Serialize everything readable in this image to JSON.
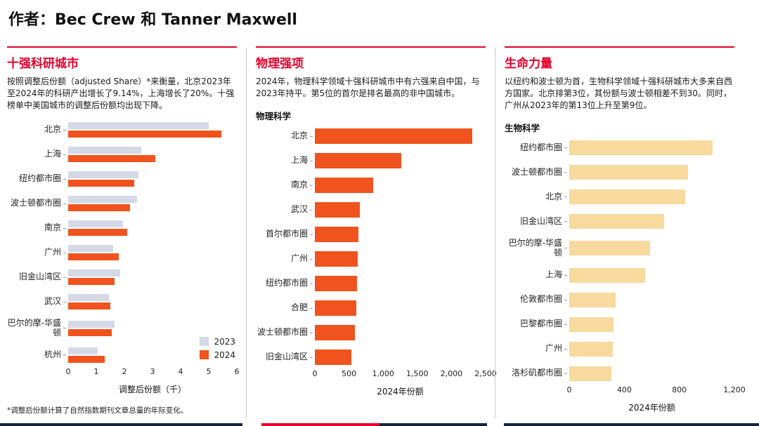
{
  "header": {
    "title": "作者：Bec Crew 和 Tanner Maxwell"
  },
  "colors": {
    "accent_red": "#e4002b",
    "bar_2023": "#d5d8e6",
    "bar_2024": "#f0531d",
    "bar_bio": "#f8d99e",
    "footer_navy": "#16243d"
  },
  "sections": [
    {
      "title": "十强科研城市",
      "body": "按照调整后份额（adjusted Share）*来衡量，北京2023年至2024年的科研产出增长了9.14%，上海增长了20%。十强榜单中美国城市的调整后份额均出现下降。",
      "footnote": "*调整后份额计算了自然指数期刊文章总量的年际变化。"
    },
    {
      "title": "物理强项",
      "body": "2024年，物理科学领域十强科研城市中有六强来自中国，与2023年持平。第5位的首尔是排名最高的非中国城市。",
      "chart_subtitle": "物理科学"
    },
    {
      "title": "生命力量",
      "body": "以纽约和波士顿为首，生物科学领域十强科研城市大多来自西方国家。北京排第3位，其份额与波士顿相差不到30。同时，广州从2023年的第13位上升至第9位。",
      "chart_subtitle": "生物科学"
    }
  ],
  "chart_data": [
    {
      "type": "bar",
      "orientation": "horizontal",
      "title": "十强科研城市",
      "categories": [
        "北京",
        "上海",
        "纽约都市圈",
        "波士顿都市圈",
        "南京",
        "广州",
        "旧金山湾区",
        "武汉",
        "巴尔的摩-华盛顿",
        "杭州"
      ],
      "series": [
        {
          "name": "2023",
          "color": "#d5d8e6",
          "values": [
            5.0,
            2.6,
            2.5,
            2.45,
            1.95,
            1.6,
            1.85,
            1.45,
            1.65,
            1.05
          ]
        },
        {
          "name": "2024",
          "color": "#f0531d",
          "values": [
            5.45,
            3.1,
            2.35,
            2.2,
            2.1,
            1.8,
            1.65,
            1.5,
            1.55,
            1.3
          ]
        }
      ],
      "xlabel": "调整后份额（千）",
      "xlim": [
        0,
        6
      ],
      "ticks": [
        0,
        1,
        2,
        3,
        4,
        5,
        6
      ],
      "legend_position": "bottom-right",
      "grid": false
    },
    {
      "type": "bar",
      "orientation": "horizontal",
      "title": "物理强项",
      "subtitle": "物理科学",
      "categories": [
        "北京",
        "上海",
        "南京",
        "武汉",
        "首尔都市圈",
        "广州",
        "纽约都市圈",
        "合肥",
        "波士顿都市圈",
        "旧金山湾区"
      ],
      "series": [
        {
          "name": "2024",
          "color": "#f0531d",
          "values": [
            2300,
            1270,
            850,
            660,
            640,
            625,
            615,
            605,
            590,
            540
          ]
        }
      ],
      "xlabel": "2024年份额",
      "xlim": [
        0,
        2500
      ],
      "ticks": [
        0,
        500,
        1000,
        1500,
        2000,
        2500
      ],
      "grid": false
    },
    {
      "type": "bar",
      "orientation": "horizontal",
      "title": "生命力量",
      "subtitle": "生物科学",
      "categories": [
        "纽约都市圈",
        "波士顿都市圈",
        "北京",
        "旧金山湾区",
        "巴尔的摩-华盛顿",
        "上海",
        "伦敦都市圈",
        "巴黎都市圈",
        "广州",
        "洛杉矶都市圈"
      ],
      "series": [
        {
          "name": "2024",
          "color": "#f8d99e",
          "values": [
            1040,
            865,
            840,
            690,
            585,
            550,
            335,
            322,
            318,
            305
          ]
        }
      ],
      "xlabel": "2024年份额",
      "xlim": [
        0,
        1200
      ],
      "ticks": [
        0,
        400,
        800,
        1200
      ],
      "grid": false
    }
  ]
}
